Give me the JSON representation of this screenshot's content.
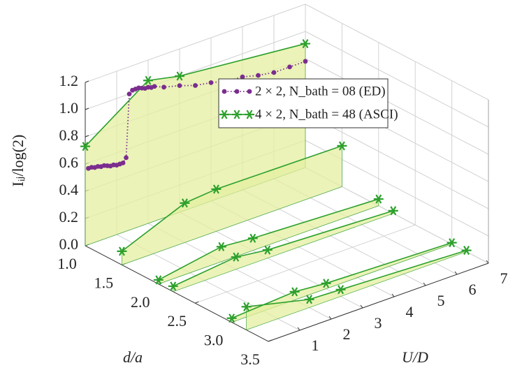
{
  "chart_data": {
    "type": "line3d",
    "xlabel": "U/D",
    "ylabel": "d/a",
    "zlabel": "Iᵢⱼ/log(2)",
    "xlim": [
      0,
      7
    ],
    "xticks": [
      1,
      2,
      3,
      4,
      5,
      6,
      7
    ],
    "ylim": [
      1,
      3.5
    ],
    "yticks": [
      {
        "value": 1,
        "label": "1.0"
      },
      1.5,
      {
        "value": 2,
        "label": "2.0"
      },
      2.5,
      {
        "value": 3,
        "label": "3.0"
      },
      3.5
    ],
    "zlim": [
      0,
      1.2
    ],
    "zticks": [
      {
        "value": 0,
        "label": "0.0"
      },
      0.2,
      0.4,
      0.6,
      0.8,
      {
        "value": 1,
        "label": "1.0"
      },
      1.2
    ],
    "grid": true,
    "legend": "upper right",
    "series": [
      {
        "name": "2 × 2, N_bath = 08 (ED)",
        "color": "#7b2d8e",
        "marker": "dot",
        "linestyle": "dotted",
        "d": 1,
        "x": [
          0.1,
          0.2,
          0.3,
          0.4,
          0.5,
          0.6,
          0.7,
          0.8,
          0.9,
          1.0,
          1.1,
          1.2,
          1.3,
          1.4,
          1.5,
          1.6,
          1.7,
          1.8,
          1.9,
          2.0,
          2.1,
          2.2,
          2.5,
          3.0,
          3.5,
          4.0,
          4.5,
          5.0,
          5.5,
          6.0,
          6.5,
          7.0
        ],
        "values": [
          0.56,
          0.56,
          0.55,
          0.55,
          0.54,
          0.54,
          0.53,
          0.52,
          0.52,
          0.51,
          0.51,
          0.51,
          0.54,
          1.0,
          1.02,
          1.02,
          1.02,
          1.01,
          1.0,
          1.0,
          0.99,
          0.99,
          0.96,
          0.93,
          0.89,
          0.87,
          0.84,
          0.83,
          0.8,
          0.78,
          0.78,
          0.78
        ]
      },
      {
        "name": "4 × 2, N_bath = 48 (ASCI)",
        "color": "#2ca02c",
        "marker": "asterisk",
        "linestyle": "solid",
        "fill": "#e4efa0",
        "d": 1,
        "x": [
          0,
          2,
          3,
          7
        ],
        "values": [
          0.73,
          1.05,
          1.0,
          0.91
        ]
      },
      {
        "color": "#2ca02c",
        "marker": "asterisk",
        "linestyle": "solid",
        "fill": "#e4efa0",
        "d": 1.5,
        "x": [
          0,
          2,
          3,
          7
        ],
        "values": [
          0.1,
          0.29,
          0.31,
          0.3
        ]
      },
      {
        "color": "#2ca02c",
        "marker": "asterisk",
        "linestyle": "solid",
        "fill": "#e4efa0",
        "d": 2,
        "x": [
          0,
          2,
          3,
          7
        ],
        "values": [
          0.03,
          0.11,
          0.09,
          0.05
        ]
      },
      {
        "color": "#2ca02c",
        "marker": "asterisk",
        "linestyle": "solid",
        "fill": "#e4efa0",
        "d": 2.2,
        "x": [
          0,
          2,
          3,
          7
        ],
        "values": [
          0.04,
          0.09,
          0.06,
          0.02
        ]
      },
      {
        "color": "#2ca02c",
        "marker": "asterisk",
        "linestyle": "solid",
        "fill": "#e4efa0",
        "d": 3,
        "x": [
          0,
          2,
          3,
          7
        ],
        "values": [
          0.03,
          0.06,
          0.04,
          0.01
        ]
      },
      {
        "color": "#2ca02c",
        "marker": "asterisk",
        "linestyle": "solid",
        "fill": "#e4efa0",
        "d": 3.2,
        "x": [
          0,
          2,
          3,
          7
        ],
        "values": [
          0.17,
          0.06,
          0.05,
          0.01
        ]
      }
    ]
  }
}
